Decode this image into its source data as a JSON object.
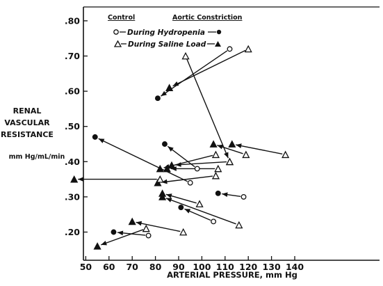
{
  "chart_data": {
    "type": "scatter",
    "xlabel": "ARTERIAL PRESSURE, mm Hg",
    "ylabel_lines": [
      "RENAL",
      "VASCULAR",
      "RESISTANCE"
    ],
    "ylabel_unit": "mm Hg/mL/min",
    "xlim": [
      40,
      140
    ],
    "ylim": [
      0.14,
      0.82
    ],
    "x_ticks": [
      50,
      60,
      70,
      80,
      90,
      100,
      110,
      120,
      130,
      140
    ],
    "y_ticks": [
      0.2,
      0.3,
      0.4,
      0.5,
      0.6,
      0.7,
      0.8
    ],
    "x_tick_labels": [
      "50",
      "60",
      "70",
      "80",
      "90",
      "100",
      "110",
      "120",
      "130",
      "140"
    ],
    "y_tick_labels": [
      ".20",
      ".30",
      ".40",
      ".50",
      ".60",
      ".70",
      ".80"
    ],
    "grid": false,
    "legend": {
      "header_left": "Control",
      "header_right": "Aortic Constriction",
      "hydropenia_label": "During Hydropenia",
      "saline_label": "During Saline Load"
    },
    "series": [
      {
        "name": "During Hydropenia",
        "marker": "circle",
        "pairs": [
          {
            "control": [
              112,
              0.72
            ],
            "constriction": [
              81,
              0.58
            ]
          },
          {
            "control": [
              98,
              0.38
            ],
            "constriction": [
              84,
              0.45
            ]
          },
          {
            "control": [
              118,
              0.3
            ],
            "constriction": [
              107,
              0.31
            ]
          },
          {
            "control": [
              105,
              0.23
            ],
            "constriction": [
              91,
              0.27
            ]
          },
          {
            "control": [
              77,
              0.19
            ],
            "constriction": [
              62,
              0.2
            ]
          },
          {
            "control": [
              95,
              0.34
            ],
            "constriction": [
              54,
              0.47
            ]
          }
        ]
      },
      {
        "name": "During Saline Load",
        "marker": "triangle",
        "pairs": [
          {
            "control": [
              120,
              0.72
            ],
            "constriction": [
              86,
              0.61
            ]
          },
          {
            "control": [
              93,
              0.7
            ],
            "constriction": [
              112,
              0.4
            ]
          },
          {
            "control": [
              136,
              0.42
            ],
            "constriction": [
              113,
              0.45
            ]
          },
          {
            "control": [
              119,
              0.42
            ],
            "constriction": [
              105,
              0.45
            ]
          },
          {
            "control": [
              106,
              0.42
            ],
            "constriction": [
              82,
              0.38
            ]
          },
          {
            "control": [
              107,
              0.38
            ],
            "constriction": [
              85,
              0.38
            ]
          },
          {
            "control": [
              112,
              0.4
            ],
            "constriction": [
              87,
              0.39
            ]
          },
          {
            "control": [
              106,
              0.36
            ],
            "constriction": [
              81,
              0.34
            ]
          },
          {
            "control": [
              82,
              0.35
            ],
            "constriction": [
              45,
              0.35
            ]
          },
          {
            "control": [
              116,
              0.22
            ],
            "constriction": [
              83,
              0.3
            ]
          },
          {
            "control": [
              99,
              0.28
            ],
            "constriction": [
              83,
              0.31
            ]
          },
          {
            "control": [
              92,
              0.2
            ],
            "constriction": [
              70,
              0.23
            ]
          },
          {
            "control": [
              76,
              0.21
            ],
            "constriction": [
              55,
              0.16
            ]
          }
        ]
      }
    ]
  }
}
